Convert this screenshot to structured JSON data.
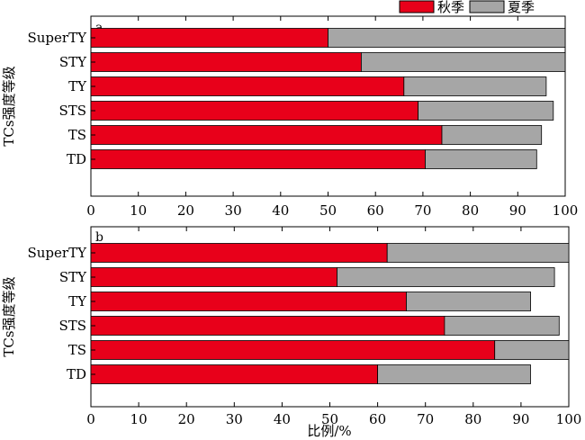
{
  "legend": {
    "position": "top-right",
    "items": [
      {
        "name": "秋季",
        "color": "#e8001a"
      },
      {
        "name": "夏季",
        "color": "#a6a6a6"
      }
    ]
  },
  "xlabel": "比例/%",
  "chart_data": [
    {
      "type": "bar",
      "orientation": "horizontal",
      "stacked": true,
      "panel": "a",
      "ylabel": "TCs强度等级",
      "xlim": [
        0,
        100
      ],
      "xticks": [
        0,
        10,
        20,
        30,
        40,
        50,
        60,
        70,
        80,
        90,
        100
      ],
      "categories": [
        "SuperTY",
        "STY",
        "TY",
        "STS",
        "TS",
        "TD"
      ],
      "series": [
        {
          "name": "秋季",
          "color": "#e8001a",
          "values": [
            50,
            57,
            66,
            69,
            74,
            70.5
          ]
        },
        {
          "name": "夏季",
          "color": "#a6a6a6",
          "values": [
            50,
            43,
            30,
            28.5,
            21,
            23.5
          ]
        }
      ]
    },
    {
      "type": "bar",
      "orientation": "horizontal",
      "stacked": true,
      "panel": "b",
      "ylabel": "TCs强度等级",
      "xlim": [
        0,
        100
      ],
      "xticks": [
        0,
        10,
        20,
        30,
        40,
        50,
        60,
        70,
        80,
        90,
        100
      ],
      "categories": [
        "SuperTY",
        "STY",
        "TY",
        "STS",
        "TS",
        "TD"
      ],
      "series": [
        {
          "name": "秋季",
          "color": "#e8001a",
          "values": [
            62,
            51.5,
            66,
            74,
            84.5,
            60
          ]
        },
        {
          "name": "夏季",
          "color": "#a6a6a6",
          "values": [
            38,
            45.5,
            26,
            24,
            15.5,
            32
          ]
        }
      ]
    }
  ]
}
